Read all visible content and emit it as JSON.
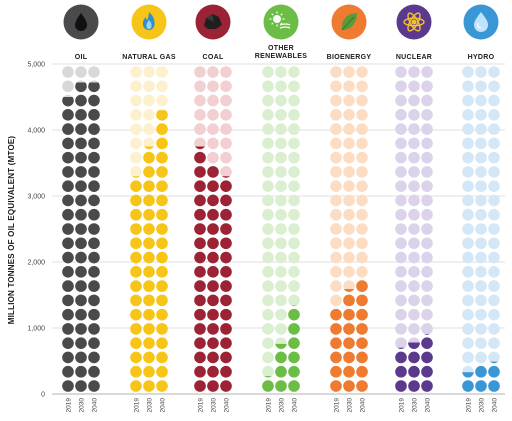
{
  "chart_data": {
    "type": "bar",
    "ylabel": "MILLION TONNES OF OIL EQUIVALENT (MTOE)",
    "xlabel": "",
    "ylim": [
      0,
      5000
    ],
    "yticks": [
      0,
      1000,
      2000,
      3000,
      4000,
      5000
    ],
    "ytick_labels": [
      "0",
      "1,000",
      "2,000",
      "3,000",
      "4,000",
      "5,000"
    ],
    "x_subcategories": [
      "2019",
      "2030",
      "2040"
    ],
    "grid": true,
    "categories": [
      {
        "name": "OIL",
        "lines": [
          "OIL"
        ],
        "icon": "oil-drop-icon",
        "color": "#4a4a4c",
        "light": "#d8d8d8",
        "values": [
          4500,
          4720,
          4720
        ]
      },
      {
        "name": "NATURAL GAS",
        "lines": [
          "NATURAL GAS"
        ],
        "icon": "gas-flame-icon",
        "color": "#f7c518",
        "light": "#fdf0cd",
        "values": [
          3300,
          3750,
          4300
        ]
      },
      {
        "name": "COAL",
        "lines": [
          "COAL"
        ],
        "icon": "coal-lump-icon",
        "color": "#9b2335",
        "light": "#f2cfd0",
        "values": [
          3750,
          3480,
          3300
        ]
      },
      {
        "name": "OTHER RENEWABLES",
        "lines": [
          "OTHER",
          "RENEWABLES"
        ],
        "icon": "renewables-wind-solar-icon",
        "color": "#6bbd45",
        "light": "#d9efcf",
        "values": [
          270,
          760,
          1340
        ]
      },
      {
        "name": "BIOENERGY",
        "lines": [
          "BIOENERGY"
        ],
        "icon": "leaf-icon",
        "color": "#ee7b30",
        "light": "#fddcc4",
        "values": [
          1310,
          1590,
          1760
        ]
      },
      {
        "name": "NUCLEAR",
        "lines": [
          "NUCLEAR"
        ],
        "icon": "atom-icon",
        "color": "#5b3a8e",
        "light": "#dcd3ea",
        "values": [
          700,
          780,
          910
        ]
      },
      {
        "name": "HYDRO",
        "lines": [
          "HYDRO"
        ],
        "icon": "water-drop-icon",
        "color": "#3a97d6",
        "light": "#d4e7f6",
        "values": [
          330,
          450,
          490
        ]
      }
    ]
  }
}
